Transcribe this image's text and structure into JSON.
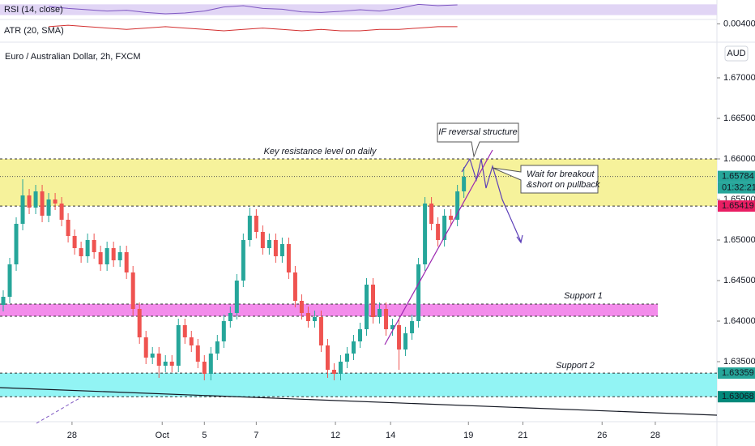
{
  "chart_data": {
    "type": "candlestick",
    "title": "Euro / Australian Dollar, 2h, FXCM",
    "currency": "AUD",
    "colors": {
      "up": "#26a69a",
      "down": "#ef5350"
    },
    "x": [
      0,
      1,
      2,
      3,
      4,
      5,
      6,
      7,
      8,
      9,
      10,
      11,
      12,
      13,
      14,
      15,
      16,
      17,
      18,
      19,
      20,
      21,
      22,
      23,
      24,
      25,
      26,
      27,
      28,
      29,
      30,
      31,
      32,
      33,
      34,
      35,
      36,
      37,
      38,
      39,
      40,
      41,
      42,
      43,
      44,
      45,
      46,
      47,
      48,
      49,
      50,
      51,
      52,
      53,
      54,
      55,
      56,
      57,
      58,
      59,
      60,
      61,
      62,
      63,
      64,
      65,
      66,
      67,
      68,
      69,
      70,
      71
    ],
    "open": [
      1.642,
      1.643,
      1.647,
      1.652,
      1.6555,
      1.654,
      1.656,
      1.653,
      1.655,
      1.6545,
      1.6525,
      1.6505,
      1.649,
      1.648,
      1.65,
      1.6485,
      1.647,
      1.649,
      1.6475,
      1.6485,
      1.646,
      1.6415,
      1.638,
      1.6355,
      1.636,
      1.6345,
      1.635,
      1.6345,
      1.6395,
      1.638,
      1.637,
      1.635,
      1.6335,
      1.636,
      1.6375,
      1.64,
      1.641,
      1.645,
      1.65,
      1.653,
      1.651,
      1.649,
      1.65,
      1.648,
      1.6495,
      1.646,
      1.6425,
      1.641,
      1.64,
      1.6405,
      1.637,
      1.634,
      1.6335,
      1.635,
      1.636,
      1.6375,
      1.639,
      1.6445,
      1.6405,
      1.6415,
      1.639,
      1.6395,
      1.6365,
      1.6385,
      1.64,
      1.647,
      1.6545,
      1.652,
      1.65,
      1.653,
      1.6525,
      1.656
    ],
    "high": [
      1.6438,
      1.6478,
      1.6528,
      1.6575,
      1.6563,
      1.6568,
      1.6568,
      1.6558,
      1.6558,
      1.6553,
      1.6533,
      1.6513,
      1.6498,
      1.6508,
      1.6508,
      1.6493,
      1.6498,
      1.6498,
      1.6493,
      1.6493,
      1.6468,
      1.6423,
      1.6388,
      1.6368,
      1.6368,
      1.6358,
      1.6358,
      1.6403,
      1.6403,
      1.6388,
      1.6378,
      1.6358,
      1.6368,
      1.6383,
      1.6408,
      1.6418,
      1.6458,
      1.6508,
      1.654,
      1.6538,
      1.6518,
      1.6508,
      1.6508,
      1.6503,
      1.6503,
      1.6468,
      1.6433,
      1.6418,
      1.6413,
      1.6413,
      1.6378,
      1.6348,
      1.6358,
      1.6368,
      1.6383,
      1.6398,
      1.6453,
      1.6453,
      1.6423,
      1.6423,
      1.6403,
      1.6403,
      1.6393,
      1.6408,
      1.6478,
      1.6553,
      1.6553,
      1.6528,
      1.6538,
      1.6538,
      1.6568,
      1.659
    ],
    "low": [
      1.6412,
      1.6422,
      1.6462,
      1.6512,
      1.6532,
      1.6532,
      1.6522,
      1.6522,
      1.6537,
      1.6517,
      1.6497,
      1.6482,
      1.6472,
      1.6472,
      1.6477,
      1.6462,
      1.6462,
      1.6467,
      1.6467,
      1.6452,
      1.6407,
      1.6372,
      1.6347,
      1.6347,
      1.633,
      1.6337,
      1.6337,
      1.6337,
      1.6372,
      1.6362,
      1.6342,
      1.6327,
      1.6327,
      1.6352,
      1.6367,
      1.6392,
      1.6402,
      1.6442,
      1.6492,
      1.6502,
      1.6482,
      1.6482,
      1.6472,
      1.6472,
      1.6452,
      1.6417,
      1.6402,
      1.6392,
      1.6392,
      1.6362,
      1.633,
      1.6327,
      1.6327,
      1.6342,
      1.6352,
      1.6367,
      1.6382,
      1.6397,
      1.6397,
      1.6382,
      1.6382,
      1.634,
      1.6357,
      1.6377,
      1.6392,
      1.6462,
      1.6512,
      1.6492,
      1.6492,
      1.6517,
      1.6517,
      1.6552
    ],
    "close": [
      1.643,
      1.647,
      1.652,
      1.6555,
      1.654,
      1.656,
      1.653,
      1.655,
      1.6545,
      1.6525,
      1.6505,
      1.649,
      1.648,
      1.65,
      1.6485,
      1.647,
      1.649,
      1.6475,
      1.6485,
      1.646,
      1.6415,
      1.638,
      1.6355,
      1.636,
      1.6345,
      1.635,
      1.6345,
      1.6395,
      1.638,
      1.637,
      1.635,
      1.6335,
      1.636,
      1.6375,
      1.64,
      1.641,
      1.645,
      1.65,
      1.653,
      1.651,
      1.649,
      1.65,
      1.648,
      1.6495,
      1.646,
      1.6425,
      1.641,
      1.64,
      1.6405,
      1.637,
      1.634,
      1.6335,
      1.635,
      1.636,
      1.6375,
      1.639,
      1.6445,
      1.6405,
      1.6415,
      1.639,
      1.6395,
      1.6365,
      1.6385,
      1.64,
      1.647,
      1.6545,
      1.652,
      1.65,
      1.653,
      1.6525,
      1.656,
      1.6578
    ],
    "xlim": [
      -0.5,
      110
    ],
    "ylim": [
      1.6281,
      1.6741
    ],
    "xticks": [
      {
        "value": 10.6,
        "label": "28"
      },
      {
        "value": 24.5,
        "label": "Oct"
      },
      {
        "value": 31,
        "label": "5"
      },
      {
        "value": 39,
        "label": "7"
      },
      {
        "value": 51.2,
        "label": "12"
      },
      {
        "value": 59.7,
        "label": "14"
      },
      {
        "value": 71.7,
        "label": "19"
      },
      {
        "value": 80.1,
        "label": "21"
      },
      {
        "value": 92.3,
        "label": "26"
      },
      {
        "value": 100.5,
        "label": "28"
      }
    ],
    "yticks": [
      {
        "value": 1.67,
        "label": "1.67000"
      },
      {
        "value": 1.665,
        "label": "1.66500"
      },
      {
        "value": 1.66,
        "label": "1.66000"
      },
      {
        "value": 1.655,
        "label": "1.65500"
      },
      {
        "value": 1.65,
        "label": "1.65000"
      },
      {
        "value": 1.645,
        "label": "1.64500"
      },
      {
        "value": 1.64,
        "label": "1.64000"
      },
      {
        "value": 1.635,
        "label": "1.63500"
      }
    ],
    "zones": [
      {
        "name": "Key resistance level on daily",
        "from": 1.65419,
        "to": 1.66,
        "x_end": 110,
        "color": "#f5f08a"
      },
      {
        "name": "Support 1",
        "from": 1.6406,
        "to": 1.6421,
        "x_end": 100.9,
        "color": "#f178e8"
      },
      {
        "name": "Support 2",
        "from": 1.63068,
        "to": 1.63359,
        "x_end": 110,
        "color": "#7ff2f2"
      }
    ],
    "price_labels": [
      {
        "value": 1.65784,
        "label": "1.65784",
        "color": "#26a69a"
      },
      {
        "value": 1.65419,
        "label": "1.65419",
        "color": "#e91e63"
      },
      {
        "value": 1.63359,
        "label": "1.63359",
        "color": "#26a69a"
      },
      {
        "value": 1.63068,
        "label": "1.63068",
        "color": "#00897b"
      }
    ],
    "timer": "01:32:21",
    "annotations": [
      "IF reversal structure",
      "Wait for breakout",
      "&short on pullback"
    ],
    "indicators": [
      {
        "name": "RSI (14, close)",
        "color": "#7e57c2",
        "band": [
          30,
          70
        ],
        "ylim": [
          20,
          80
        ],
        "x": [
          7,
          10,
          13,
          16,
          19,
          22,
          25,
          28,
          31,
          34,
          37,
          40,
          43,
          46,
          49,
          52,
          55,
          58,
          61,
          64,
          67,
          70
        ],
        "values": [
          62,
          55,
          50,
          45,
          48,
          40,
          35,
          38,
          45,
          60,
          65,
          55,
          52,
          42,
          40,
          44,
          50,
          45,
          55,
          70,
          65,
          68
        ]
      },
      {
        "name": "ATR (20, SMA)",
        "color": "#d32f2f",
        "ylim": [
          0.0028,
          0.0042
        ],
        "yticks": [
          {
            "value": 0.004,
            "label": "0.00400"
          }
        ],
        "x": [
          7,
          10,
          13,
          16,
          19,
          22,
          25,
          28,
          31,
          34,
          37,
          40,
          43,
          46,
          49,
          52,
          55,
          58,
          61,
          64,
          67,
          70
        ],
        "values": [
          0.0038,
          0.0039,
          0.0038,
          0.0037,
          0.0036,
          0.0037,
          0.0038,
          0.0037,
          0.0036,
          0.0035,
          0.0036,
          0.0037,
          0.0036,
          0.0035,
          0.0036,
          0.0035,
          0.0035,
          0.0036,
          0.0036,
          0.0037,
          0.0038,
          0.0038
        ]
      }
    ]
  }
}
